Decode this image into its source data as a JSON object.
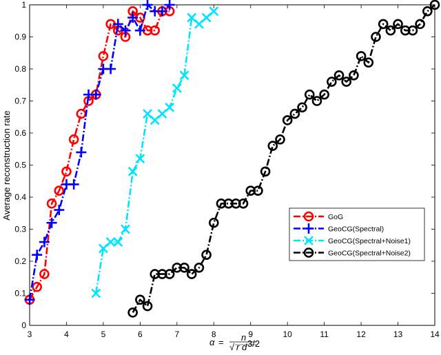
{
  "chart_data": {
    "type": "line",
    "title": "",
    "xlabel": "α = n/√(r d^{3/2})",
    "ylabel": "Average reconstruction rate",
    "xlim": [
      3,
      14
    ],
    "ylim": [
      0,
      1
    ],
    "xticks": [
      3,
      4,
      5,
      6,
      7,
      8,
      9,
      10,
      11,
      12,
      13,
      14
    ],
    "yticks": [
      0,
      0.1,
      0.2,
      0.3,
      0.4,
      0.5,
      0.6,
      0.7,
      0.8,
      0.9,
      1
    ],
    "xtick_labels": [
      "3",
      "4",
      "5",
      "6",
      "7",
      "8",
      "9",
      "10",
      "11",
      "12",
      "13",
      "14"
    ],
    "ytick_labels": [
      "0",
      "0.1",
      "0.2",
      "0.3",
      "0.4",
      "0.5",
      "0.6",
      "0.7",
      "0.8",
      "0.9",
      "1"
    ],
    "grid": false,
    "legend_position": "right",
    "series": [
      {
        "name": "GoG",
        "color": "#ff0000",
        "marker": "circle",
        "line_style": "dash-dot",
        "x": [
          3.0,
          3.2,
          3.4,
          3.6,
          3.8,
          4.0,
          4.2,
          4.4,
          4.6,
          4.8,
          5.0,
          5.2,
          5.4,
          5.6,
          5.8,
          6.0,
          6.2,
          6.4,
          6.6,
          6.8
        ],
        "y": [
          0.08,
          0.12,
          0.16,
          0.38,
          0.42,
          0.48,
          0.58,
          0.66,
          0.7,
          0.72,
          0.84,
          0.94,
          0.92,
          0.9,
          0.98,
          0.96,
          0.92,
          0.92,
          0.98,
          0.98
        ]
      },
      {
        "name": "GeoCG(Spectral)",
        "color": "#0000ff",
        "marker": "plus",
        "line_style": "dash-dot",
        "x": [
          3.0,
          3.2,
          3.4,
          3.6,
          3.8,
          4.0,
          4.2,
          4.4,
          4.6,
          4.8,
          5.0,
          5.2,
          5.4,
          5.6,
          5.8,
          6.0,
          6.2,
          6.4,
          6.6,
          6.8
        ],
        "y": [
          0.08,
          0.22,
          0.26,
          0.32,
          0.36,
          0.44,
          0.44,
          0.54,
          0.72,
          0.72,
          0.8,
          0.8,
          0.94,
          0.92,
          0.96,
          0.92,
          1.0,
          0.98,
          0.98,
          1.0
        ]
      },
      {
        "name": "GeoCG(Spectral+Noise1)",
        "color": "#00e5ff",
        "marker": "x",
        "line_style": "dash-dot",
        "x": [
          4.8,
          5.0,
          5.2,
          5.4,
          5.6,
          5.8,
          6.0,
          6.2,
          6.4,
          6.6,
          6.8,
          7.0,
          7.2,
          7.4,
          7.6,
          7.8,
          8.0
        ],
        "y": [
          0.1,
          0.24,
          0.26,
          0.26,
          0.3,
          0.48,
          0.52,
          0.66,
          0.64,
          0.66,
          0.68,
          0.74,
          0.78,
          0.96,
          0.94,
          0.96,
          0.98
        ]
      },
      {
        "name": "GeoCG(Spectral+Noise2)",
        "color": "#000000",
        "marker": "circle",
        "line_style": "dash-dot",
        "x": [
          5.8,
          6.0,
          6.2,
          6.4,
          6.6,
          6.8,
          7.0,
          7.2,
          7.4,
          7.6,
          7.8,
          8.0,
          8.2,
          8.4,
          8.6,
          8.8,
          9.0,
          9.2,
          9.4,
          9.6,
          9.8,
          10.0,
          10.2,
          10.4,
          10.6,
          10.8,
          11.0,
          11.2,
          11.4,
          11.6,
          11.8,
          12.0,
          12.2,
          12.4,
          12.6,
          12.8,
          13.0,
          13.2,
          13.4,
          13.6,
          13.8,
          14.0
        ],
        "y": [
          0.04,
          0.08,
          0.06,
          0.16,
          0.16,
          0.16,
          0.18,
          0.18,
          0.16,
          0.18,
          0.22,
          0.32,
          0.38,
          0.38,
          0.38,
          0.38,
          0.42,
          0.42,
          0.48,
          0.56,
          0.58,
          0.64,
          0.66,
          0.68,
          0.72,
          0.7,
          0.72,
          0.76,
          0.78,
          0.76,
          0.78,
          0.84,
          0.82,
          0.9,
          0.94,
          0.92,
          0.94,
          0.92,
          0.92,
          0.94,
          0.98,
          1.0
        ]
      }
    ]
  }
}
